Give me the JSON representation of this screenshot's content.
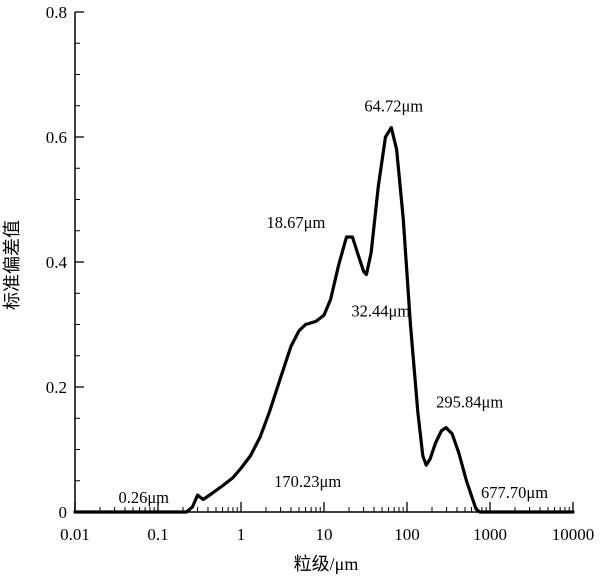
{
  "chart_data": {
    "type": "line",
    "title": "",
    "xlabel": "粒级/μm",
    "ylabel": "标准偏差值",
    "x_scale": "log",
    "xlim": [
      0.01,
      10000
    ],
    "ylim": [
      0,
      0.8
    ],
    "x_ticks": [
      0.01,
      0.1,
      1,
      10,
      100,
      1000,
      10000
    ],
    "x_tick_labels": [
      "0.01",
      "0.1",
      "1",
      "10",
      "100",
      "1000",
      "10000"
    ],
    "y_ticks": [
      0,
      0.2,
      0.4,
      0.6,
      0.8
    ],
    "y_tick_labels": [
      "0",
      "0.2",
      "0.4",
      "0.6",
      "0.8"
    ],
    "grid": false,
    "series": [
      {
        "color": "#000000",
        "points": [
          [
            0.01,
            0
          ],
          [
            0.1,
            0
          ],
          [
            0.22,
            0
          ],
          [
            0.26,
            0.008
          ],
          [
            0.3,
            0.027
          ],
          [
            0.35,
            0.02
          ],
          [
            0.45,
            0.03
          ],
          [
            0.6,
            0.042
          ],
          [
            0.8,
            0.055
          ],
          [
            1,
            0.07
          ],
          [
            1.3,
            0.09
          ],
          [
            1.7,
            0.12
          ],
          [
            2.2,
            0.16
          ],
          [
            3,
            0.215
          ],
          [
            4,
            0.265
          ],
          [
            5,
            0.29
          ],
          [
            6,
            0.3
          ],
          [
            8,
            0.305
          ],
          [
            10,
            0.315
          ],
          [
            12,
            0.34
          ],
          [
            15,
            0.395
          ],
          [
            18.67,
            0.44
          ],
          [
            22,
            0.44
          ],
          [
            26,
            0.41
          ],
          [
            30,
            0.385
          ],
          [
            32.44,
            0.38
          ],
          [
            37,
            0.415
          ],
          [
            45,
            0.52
          ],
          [
            55,
            0.6
          ],
          [
            64.72,
            0.615
          ],
          [
            75,
            0.58
          ],
          [
            90,
            0.47
          ],
          [
            110,
            0.3
          ],
          [
            135,
            0.16
          ],
          [
            155,
            0.09
          ],
          [
            170.23,
            0.075
          ],
          [
            190,
            0.085
          ],
          [
            220,
            0.11
          ],
          [
            260,
            0.13
          ],
          [
            295.84,
            0.135
          ],
          [
            350,
            0.125
          ],
          [
            420,
            0.095
          ],
          [
            520,
            0.05
          ],
          [
            620,
            0.02
          ],
          [
            677.7,
            0.005
          ],
          [
            750,
            0
          ],
          [
            1000,
            0
          ],
          [
            10000,
            0
          ]
        ]
      }
    ],
    "annotations": [
      {
        "text": "64.72μm",
        "x": 64.72,
        "y": 0.615
      },
      {
        "text": "18.67μm",
        "x": 18.67,
        "y": 0.44
      },
      {
        "text": "32.44μm",
        "x": 32.44,
        "y": 0.38
      },
      {
        "text": "295.84μm",
        "x": 295.84,
        "y": 0.135
      },
      {
        "text": "170.23μm",
        "x": 170.23,
        "y": 0.075
      },
      {
        "text": "0.26μm",
        "x": 0.26,
        "y": 0.008
      },
      {
        "text": "677.70μm",
        "x": 677.7,
        "y": 0.005
      }
    ]
  }
}
